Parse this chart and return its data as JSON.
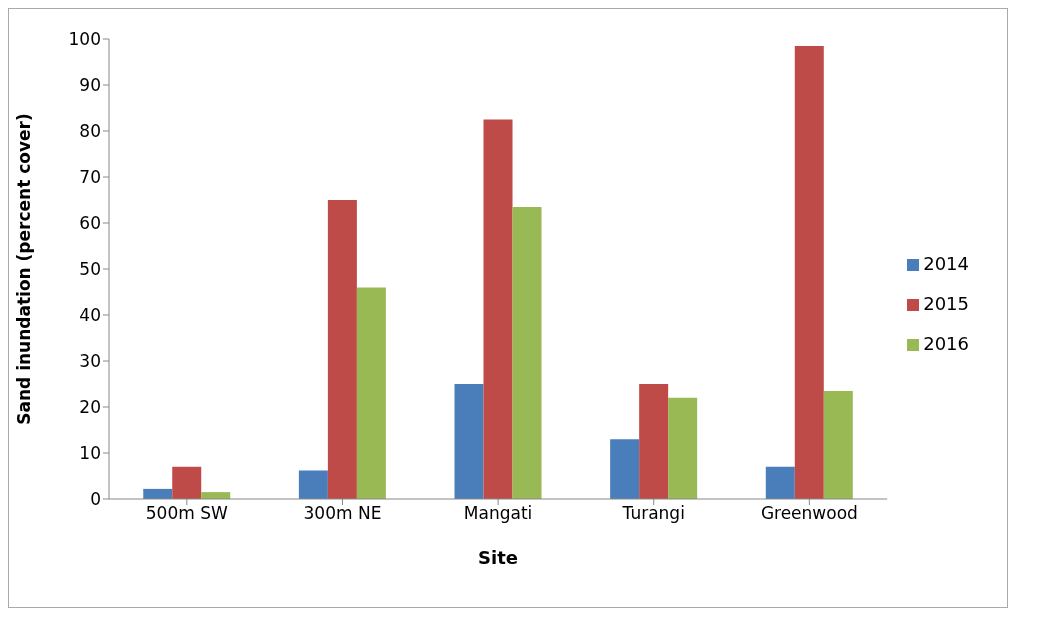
{
  "chart_data": {
    "type": "bar",
    "xlabel": "Site",
    "ylabel": "Sand inundation  (percent cover)",
    "categories": [
      "500m SW",
      "300m NE",
      "Mangati",
      "Turangi",
      "Greenwood"
    ],
    "series": [
      {
        "name": "2014",
        "color": "#4a7ebb",
        "values": [
          2.2,
          6.2,
          25,
          13,
          7
        ]
      },
      {
        "name": "2015",
        "color": "#be4b48",
        "values": [
          7,
          65,
          82.5,
          25,
          98.5
        ]
      },
      {
        "name": "2016",
        "color": "#98b954",
        "values": [
          1.5,
          46,
          63.5,
          22,
          23.5
        ]
      }
    ],
    "ylim": [
      0,
      100
    ],
    "yticks": [
      0,
      10,
      20,
      30,
      40,
      50,
      60,
      70,
      80,
      90,
      100
    ],
    "grid": false,
    "legend": "right"
  }
}
